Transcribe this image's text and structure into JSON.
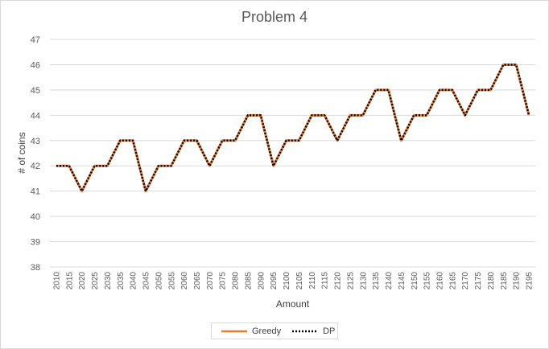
{
  "chart_data": {
    "type": "line",
    "title": "Problem 4",
    "xlabel": "Amount",
    "ylabel": "# of coins",
    "ylim": [
      38,
      47
    ],
    "yticks": [
      "38",
      "39",
      "40",
      "41",
      "42",
      "43",
      "44",
      "45",
      "46",
      "47"
    ],
    "grid": "horizontal",
    "legend": "bottom",
    "categories": [
      "2010",
      "2015",
      "2020",
      "2025",
      "2030",
      "2035",
      "2040",
      "2045",
      "2050",
      "2055",
      "2060",
      "2065",
      "2070",
      "2075",
      "2080",
      "2085",
      "2090",
      "2095",
      "2100",
      "2105",
      "2110",
      "2115",
      "2120",
      "2125",
      "2130",
      "2135",
      "2140",
      "2145",
      "2150",
      "2155",
      "2160",
      "2165",
      "2170",
      "2175",
      "2180",
      "2185",
      "2190",
      "2195"
    ],
    "series": [
      {
        "name": "Greedy",
        "color": "#ed7d31",
        "style": "solid",
        "values": [
          42,
          42,
          41,
          42,
          42,
          43,
          43,
          41,
          42,
          42,
          43,
          43,
          42,
          43,
          43,
          44,
          44,
          42,
          43,
          43,
          44,
          44,
          43,
          44,
          44,
          45,
          45,
          43,
          44,
          44,
          45,
          45,
          44,
          45,
          45,
          46,
          46,
          44
        ]
      },
      {
        "name": "DP",
        "color": "#000000",
        "style": "dotted",
        "values": [
          42,
          42,
          41,
          42,
          42,
          43,
          43,
          41,
          42,
          42,
          43,
          43,
          42,
          43,
          43,
          44,
          44,
          42,
          43,
          43,
          44,
          44,
          43,
          44,
          44,
          45,
          45,
          43,
          44,
          44,
          45,
          45,
          44,
          45,
          45,
          46,
          46,
          44
        ]
      }
    ]
  }
}
